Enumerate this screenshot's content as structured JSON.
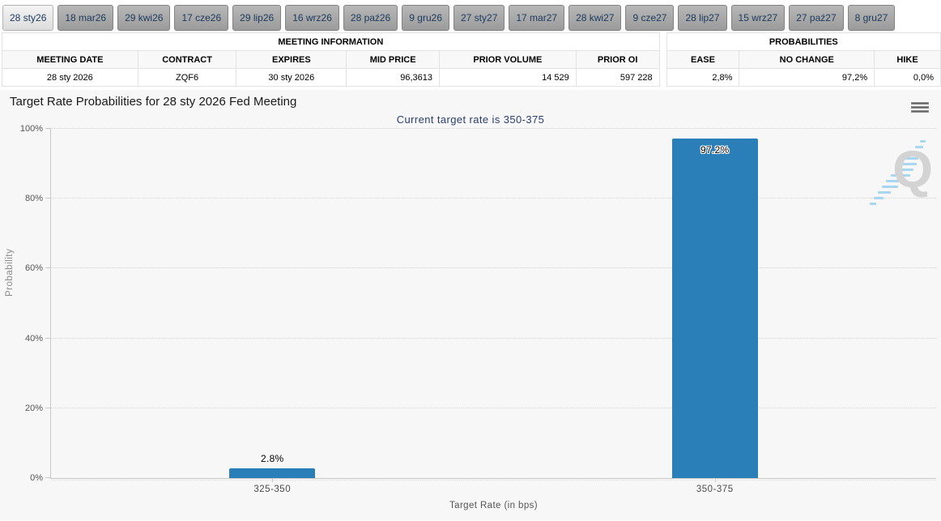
{
  "tabs": [
    {
      "label": "28 sty26",
      "active": true
    },
    {
      "label": "18 mar26",
      "active": false
    },
    {
      "label": "29 kwi26",
      "active": false
    },
    {
      "label": "17 cze26",
      "active": false
    },
    {
      "label": "29 lip26",
      "active": false
    },
    {
      "label": "16 wrz26",
      "active": false
    },
    {
      "label": "28 paź26",
      "active": false
    },
    {
      "label": "9 gru26",
      "active": false
    },
    {
      "label": "27 sty27",
      "active": false
    },
    {
      "label": "17 mar27",
      "active": false
    },
    {
      "label": "28 kwi27",
      "active": false
    },
    {
      "label": "9 cze27",
      "active": false
    },
    {
      "label": "28 lip27",
      "active": false
    },
    {
      "label": "15 wrz27",
      "active": false
    },
    {
      "label": "27 paź27",
      "active": false
    },
    {
      "label": "8 gru27",
      "active": false
    }
  ],
  "meeting_information": {
    "title": "MEETING INFORMATION",
    "columns": [
      "MEETING DATE",
      "CONTRACT",
      "EXPIRES",
      "MID PRICE",
      "PRIOR VOLUME",
      "PRIOR OI"
    ],
    "row": [
      "28 sty 2026",
      "ZQF6",
      "30 sty 2026",
      "96,3613",
      "14 529",
      "597 228"
    ]
  },
  "probabilities": {
    "title": "PROBABILITIES",
    "columns": [
      "EASE",
      "NO CHANGE",
      "HIKE"
    ],
    "row": [
      "2,8%",
      "97,2%",
      "0,0%"
    ]
  },
  "chart_data": {
    "type": "bar",
    "title": "Target Rate Probabilities for 28 sty 2026 Fed Meeting",
    "subtitle": "Current target rate is 350-375",
    "categories": [
      "325-350",
      "350-375"
    ],
    "values": [
      2.8,
      97.2
    ],
    "value_labels": [
      "2.8%",
      "97.2%"
    ],
    "xlabel": "Target Rate (in bps)",
    "ylabel": "Probability",
    "ylim": [
      0,
      100
    ],
    "yticks": [
      "0%",
      "20%",
      "40%",
      "60%",
      "80%",
      "100%"
    ],
    "bar_color": "#2a7fb8",
    "grid": "dotted-horizontal",
    "legend": "none"
  },
  "watermark_letter": "Q"
}
